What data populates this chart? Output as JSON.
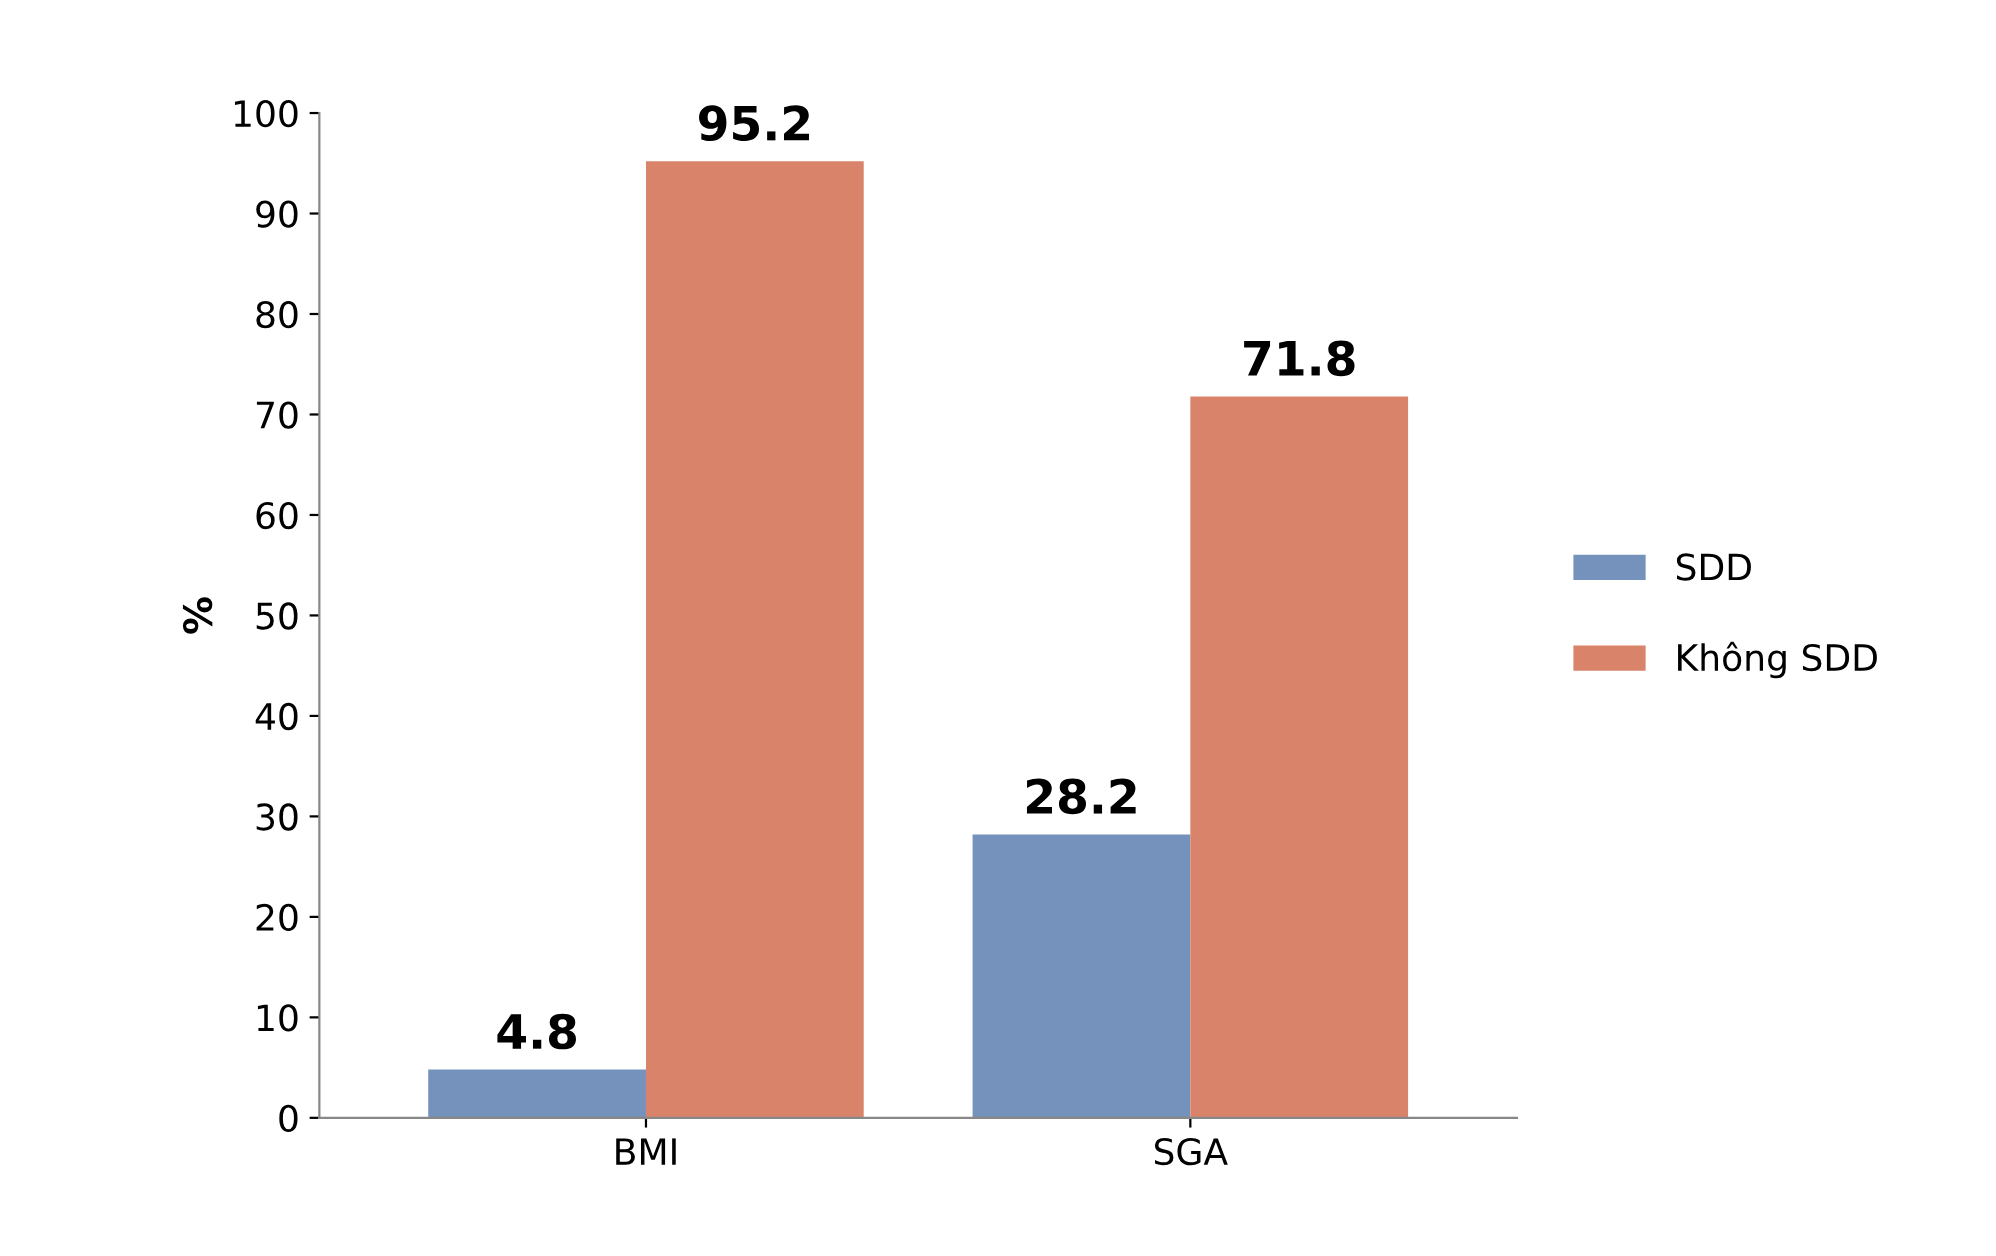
{
  "chart_data": {
    "type": "bar",
    "ylabel": "%",
    "categories": [
      "BMI",
      "SGA"
    ],
    "series": [
      {
        "name": "SDD",
        "color": "#7492bb",
        "values": [
          4.8,
          28.2
        ]
      },
      {
        "name": "Không SDD",
        "color": "#d9846a",
        "values": [
          95.2,
          71.8
        ]
      }
    ],
    "ylim": [
      0,
      100
    ],
    "yticks": [
      0,
      10,
      20,
      30,
      40,
      50,
      60,
      70,
      80,
      90,
      100
    ],
    "grid": false,
    "legend": "right",
    "data_labels": true
  }
}
